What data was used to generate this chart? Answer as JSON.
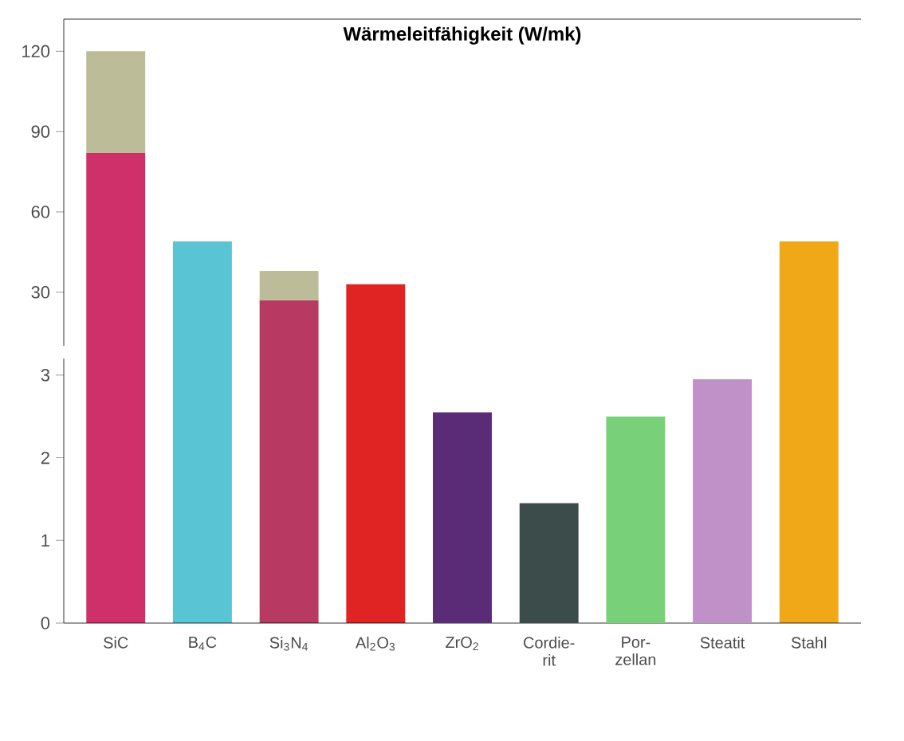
{
  "chart_data": [
    {
      "type": "bar",
      "title": "Wärmeleitfähigkeit (W/mk)",
      "stacked": true,
      "tick_labels": "y",
      "series": [
        {
          "colors": [
            "#d0306a",
            "#58c4d4",
            "#b83a62",
            "#e02424",
            "#5a2c78",
            "#3c4c4a",
            "#78d078",
            "#c090c8",
            "#f0a818"
          ],
          "values": [
            82,
            49,
            27,
            33,
            null,
            null,
            null,
            null,
            49
          ]
        },
        {
          "color": "#bcbc98",
          "values": [
            38,
            null,
            11,
            null,
            null,
            null,
            null,
            null,
            null
          ]
        }
      ],
      "ylim": [
        10,
        132
      ],
      "yticks": [
        30,
        60,
        90,
        120
      ]
    },
    {
      "type": "bar",
      "categories": [
        "SiC",
        "B$_{4}$C",
        "Si$_{3}$N$_{4}$",
        "Al$_{2}$O$_{3}$",
        "ZrO$_{2}$",
        "Cordie-rit",
        "Por-zellan",
        "Steatit",
        "Stahl"
      ],
      "series": [
        {
          "colors": [
            "#d0306a",
            "#58c4d4",
            "#b83a62",
            "#e02424",
            "#5a2c78",
            "#3c4c4a",
            "#78d078",
            "#c090c8",
            "#f0a818"
          ],
          "values": [
            null,
            null,
            null,
            null,
            2.55,
            1.45,
            2.5,
            2.95,
            null
          ]
        }
      ],
      "ylim": [
        0,
        3.2
      ],
      "yticks": [
        0,
        1,
        2,
        3
      ]
    }
  ]
}
